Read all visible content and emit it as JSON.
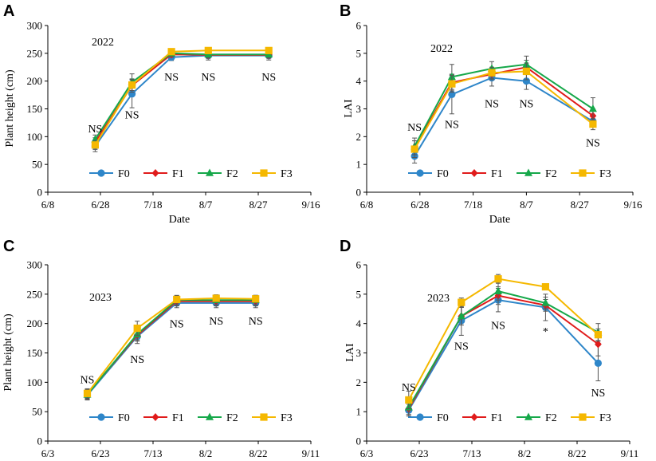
{
  "colors": {
    "F0": "#2E86C9",
    "F1": "#E01B1B",
    "F2": "#16A84A",
    "F3": "#F5B800",
    "axis": "#000000",
    "error": "#555555"
  },
  "chart_data": [
    {
      "panel": "A",
      "type": "line",
      "title": "2022",
      "xlabel": "Date",
      "ylabel": "Plant height (cm)",
      "x_ticks": [
        "6/8",
        "6/28",
        "7/18",
        "8/7",
        "8/27",
        "9/16"
      ],
      "xlim_days": [
        0,
        100
      ],
      "ylim": [
        0,
        300
      ],
      "y_step": 50,
      "x_days": [
        18,
        32,
        47,
        61,
        84
      ],
      "series": [
        {
          "name": "F0",
          "marker": "circle",
          "values": [
            83,
            177,
            243,
            246,
            246
          ],
          "errors": [
            10,
            25,
            6,
            8,
            8
          ]
        },
        {
          "name": "F1",
          "marker": "diamond",
          "values": [
            90,
            192,
            248,
            247,
            247
          ],
          "errors": [
            8,
            12,
            5,
            6,
            6
          ]
        },
        {
          "name": "F2",
          "marker": "triangle",
          "values": [
            95,
            198,
            250,
            248,
            248
          ],
          "errors": [
            8,
            15,
            5,
            6,
            6
          ]
        },
        {
          "name": "F3",
          "marker": "square",
          "values": [
            85,
            193,
            253,
            255,
            255
          ],
          "errors": [
            8,
            10,
            5,
            5,
            5
          ]
        }
      ],
      "annotations": [
        {
          "text": "NS",
          "x_day": 18,
          "y": 115
        },
        {
          "text": "NS",
          "x_day": 32,
          "y": 140
        },
        {
          "text": "NS",
          "x_day": 47,
          "y": 208
        },
        {
          "text": "NS",
          "x_day": 61,
          "y": 208
        },
        {
          "text": "NS",
          "x_day": 84,
          "y": 208
        }
      ]
    },
    {
      "panel": "B",
      "type": "line",
      "title": "2022",
      "xlabel": "Date",
      "ylabel": "LAI",
      "x_ticks": [
        "6/8",
        "6/28",
        "7/18",
        "8/7",
        "8/27",
        "9/16"
      ],
      "xlim_days": [
        0,
        100
      ],
      "ylim": [
        0,
        6
      ],
      "y_step": 1,
      "x_days": [
        18,
        32,
        47,
        60,
        85
      ],
      "series": [
        {
          "name": "F0",
          "marker": "circle",
          "values": [
            1.3,
            3.52,
            4.12,
            4.0,
            2.55
          ],
          "errors": [
            0.25,
            0.7,
            0.3,
            0.3,
            0.2
          ]
        },
        {
          "name": "F1",
          "marker": "diamond",
          "values": [
            1.6,
            3.95,
            4.25,
            4.5,
            2.75
          ],
          "errors": [
            0.25,
            0.3,
            0.2,
            0.25,
            0.25
          ]
        },
        {
          "name": "F2",
          "marker": "triangle",
          "values": [
            1.65,
            4.15,
            4.45,
            4.6,
            3.0
          ],
          "errors": [
            0.3,
            0.45,
            0.25,
            0.3,
            0.4
          ]
        },
        {
          "name": "F3",
          "marker": "square",
          "values": [
            1.55,
            3.9,
            4.3,
            4.35,
            2.45
          ],
          "errors": [
            0.3,
            0.3,
            0.2,
            0.3,
            0.2
          ]
        }
      ],
      "annotations": [
        {
          "text": "NS",
          "x_day": 18,
          "y": 2.35
        },
        {
          "text": "NS",
          "x_day": 32,
          "y": 2.45
        },
        {
          "text": "NS",
          "x_day": 47,
          "y": 3.2
        },
        {
          "text": "NS",
          "x_day": 60,
          "y": 3.2
        },
        {
          "text": "NS",
          "x_day": 85,
          "y": 1.8
        }
      ]
    },
    {
      "panel": "C",
      "type": "line",
      "title": "2023",
      "xlabel": "Date",
      "ylabel": "Plant height (cm)",
      "x_ticks": [
        "6/3",
        "6/23",
        "7/13",
        "8/2",
        "8/22",
        "9/11"
      ],
      "xlim_days": [
        0,
        100
      ],
      "ylim": [
        0,
        300
      ],
      "y_step": 50,
      "x_days": [
        15,
        34,
        49,
        64,
        79
      ],
      "series": [
        {
          "name": "F0",
          "marker": "circle",
          "values": [
            78,
            178,
            235,
            235,
            235
          ],
          "errors": [
            8,
            12,
            8,
            8,
            8
          ]
        },
        {
          "name": "F1",
          "marker": "diamond",
          "values": [
            80,
            180,
            238,
            238,
            238
          ],
          "errors": [
            8,
            10,
            8,
            8,
            8
          ]
        },
        {
          "name": "F2",
          "marker": "triangle",
          "values": [
            79,
            182,
            240,
            240,
            240
          ],
          "errors": [
            8,
            10,
            8,
            8,
            8
          ]
        },
        {
          "name": "F3",
          "marker": "square",
          "values": [
            81,
            192,
            241,
            243,
            242
          ],
          "errors": [
            8,
            12,
            6,
            6,
            6
          ]
        }
      ],
      "annotations": [
        {
          "text": "NS",
          "x_day": 15,
          "y": 105
        },
        {
          "text": "NS",
          "x_day": 34,
          "y": 140
        },
        {
          "text": "NS",
          "x_day": 49,
          "y": 200
        },
        {
          "text": "NS",
          "x_day": 64,
          "y": 205
        },
        {
          "text": "NS",
          "x_day": 79,
          "y": 205
        }
      ]
    },
    {
      "panel": "D",
      "type": "line",
      "title": "2023",
      "xlabel": "Date",
      "ylabel": "LAI",
      "x_ticks": [
        "6/3",
        "6/23",
        "7/13",
        "8/2",
        "8/22",
        "9/11"
      ],
      "xlim_days": [
        0,
        100
      ],
      "ylim": [
        0,
        6
      ],
      "y_step": 1,
      "x_days": [
        16,
        36,
        50,
        68,
        88
      ],
      "series": [
        {
          "name": "F0",
          "marker": "circle",
          "values": [
            1.05,
            4.1,
            4.8,
            4.55,
            2.65
          ],
          "errors": [
            0.2,
            0.5,
            0.4,
            0.45,
            0.6
          ]
        },
        {
          "name": "F1",
          "marker": "diamond",
          "values": [
            1.1,
            4.25,
            4.95,
            4.62,
            3.3
          ],
          "errors": [
            0.2,
            0.3,
            0.3,
            0.2,
            0.4
          ]
        },
        {
          "name": "F2",
          "marker": "triangle",
          "values": [
            1.15,
            4.25,
            5.1,
            4.7,
            3.7
          ],
          "errors": [
            0.25,
            0.3,
            0.3,
            0.2,
            0.3
          ]
        },
        {
          "name": "F3",
          "marker": "square",
          "values": [
            1.4,
            4.72,
            5.52,
            5.25,
            3.62
          ],
          "errors": [
            0.3,
            0.15,
            0.15,
            0.1,
            0.2
          ]
        }
      ],
      "annotations": [
        {
          "text": "NS",
          "x_day": 16,
          "y": 1.85
        },
        {
          "text": "NS",
          "x_day": 36,
          "y": 3.25
        },
        {
          "text": "NS",
          "x_day": 50,
          "y": 3.95
        },
        {
          "text": "*",
          "x_day": 68,
          "y": 3.75
        },
        {
          "text": "NS",
          "x_day": 88,
          "y": 1.65
        }
      ]
    }
  ]
}
